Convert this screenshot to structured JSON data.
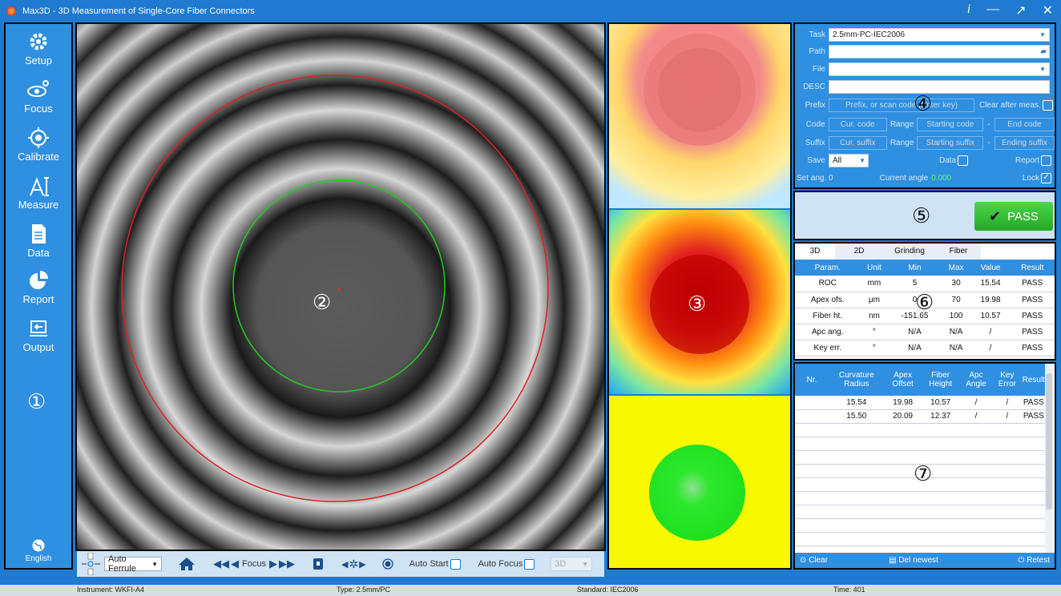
{
  "app": {
    "title": "Max3D - 3D Measurement of Single-Core Fiber Connectors",
    "ctrl_info": "i",
    "ctrl_min": "—",
    "ctrl_restore": "↗",
    "ctrl_close": "✕"
  },
  "sidebar": {
    "items": [
      {
        "label": "Setup",
        "icon": "gear-icon"
      },
      {
        "label": "Focus",
        "icon": "eye-icon"
      },
      {
        "label": "Calibrate",
        "icon": "target-icon"
      },
      {
        "label": "Measure",
        "icon": "measure-icon"
      },
      {
        "label": "Data",
        "icon": "document-icon"
      },
      {
        "label": "Report",
        "icon": "pie-chart-icon"
      },
      {
        "label": "Output",
        "icon": "export-icon"
      }
    ],
    "badge": "①",
    "language": "English"
  },
  "camera": {
    "badge": "②"
  },
  "camera_toolbar": {
    "ferrule": "Auto Ferrule",
    "focus": "Focus",
    "auto_start": "Auto Start",
    "auto_focus": "Auto Focus",
    "mode": "3D"
  },
  "maps": {
    "badge": "③"
  },
  "settings": {
    "badge": "④",
    "task_label": "Task",
    "task_value": "2.5mm-PC-IEC2006",
    "path_label": "Path",
    "file_label": "File",
    "desc_label": "DESC",
    "prefix_label": "Prefix",
    "prefix_placeholder": "Prefix, or scan code (Enter key)",
    "clear_after": "Clear after meas.",
    "code_label": "Code",
    "code_placeholder": "Cur. code",
    "range_label": "Range",
    "start_code": "Starting code",
    "dash": "-",
    "end_code": "End code",
    "suffix_label": "Suffix",
    "suffix_placeholder": "Cur. suffix",
    "start_suffix": "Starting suffix",
    "end_suffix": "Ending suffix",
    "save_label": "Save",
    "save_value": "All",
    "data_label": "Data",
    "report_label": "Report",
    "set_ang": "Set ang. 0",
    "current_angle_label": "Current angle",
    "current_angle_value": "0.000",
    "lock_label": "Lock"
  },
  "result": {
    "badge": "⑤",
    "status": "PASS",
    "check": "✔"
  },
  "params": {
    "badge": "⑥",
    "tabs": [
      "3D",
      "2D",
      "Grinding",
      "Fiber"
    ],
    "headers": [
      "Param.",
      "Unit",
      "Min",
      "Max",
      "Value",
      "Result"
    ],
    "rows": [
      [
        "ROC",
        "mm",
        "5",
        "30",
        "15.54",
        "PASS"
      ],
      [
        "Apex ofs.",
        "μm",
        "0",
        "70",
        "19.98",
        "PASS"
      ],
      [
        "Fiber ht.",
        "nm",
        "-151.65",
        "100",
        "10.57",
        "PASS"
      ],
      [
        "Apc ang.",
        "°",
        "N/A",
        "N/A",
        "/",
        "PASS"
      ],
      [
        "Key err.",
        "°",
        "N/A",
        "N/A",
        "/",
        "PASS"
      ]
    ]
  },
  "history": {
    "badge": "⑦",
    "headers": [
      "Nr.",
      "Curvature Radius",
      "Apex Offset",
      "Fiber Height",
      "Apc Angle",
      "Key Error",
      "Result"
    ],
    "rows": [
      [
        "",
        "15.54",
        "19.98",
        "10.57",
        "/",
        "/",
        "PASS"
      ],
      [
        "",
        "15.50",
        "20.09",
        "12.37",
        "/",
        "/",
        "PASS"
      ]
    ],
    "clear": "Clear",
    "del_newest": "Del newest",
    "retest": "Retest"
  },
  "status": {
    "instrument": "Instrument: WKFI-A4",
    "type": "Type: 2.5mm/PC",
    "standard": "Standard: IEC2006",
    "time": "Time: 401"
  },
  "colors": {
    "accent": "#2f8fe0",
    "pass": "#2eb82e"
  }
}
